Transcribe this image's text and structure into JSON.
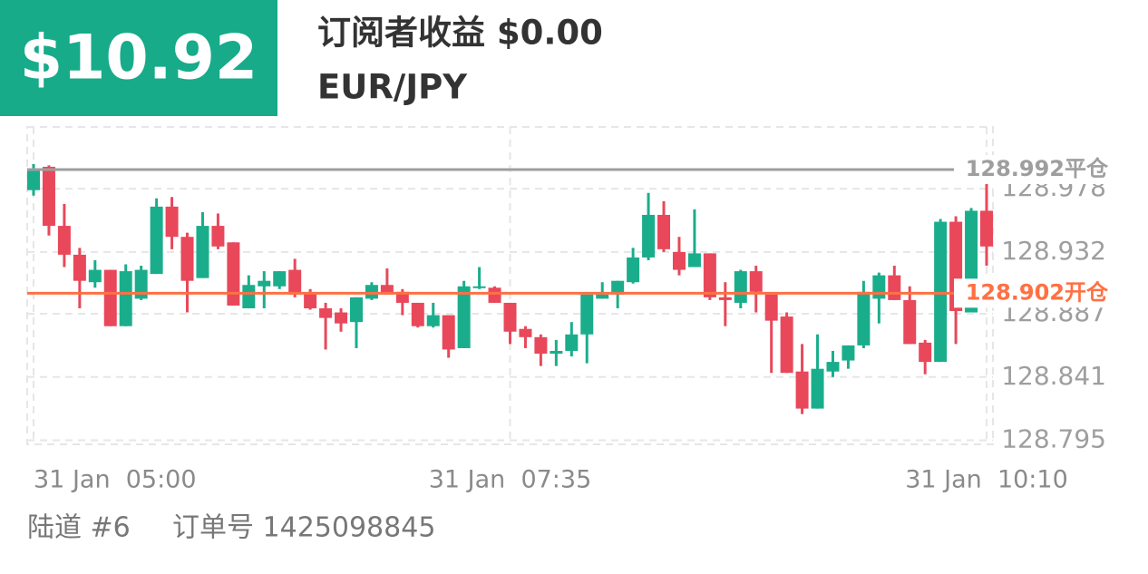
{
  "header": {
    "profit": "$10.92",
    "subscriber_profit": "订阅者收益 $0.00",
    "symbol": "EUR/JPY"
  },
  "footer": {
    "channel": "陆道 #6",
    "order": "订单号 1425098845"
  },
  "chart_data": {
    "type": "candlestick",
    "categories": [
      "31 Jan  05:00",
      null,
      null,
      null,
      null,
      null,
      null,
      null,
      null,
      null,
      null,
      null,
      null,
      null,
      null,
      null,
      null,
      null,
      null,
      null,
      null,
      null,
      null,
      null,
      null,
      null,
      null,
      null,
      null,
      null,
      null,
      "31 Jan  07:35",
      null,
      null,
      null,
      null,
      null,
      null,
      null,
      null,
      null,
      null,
      null,
      null,
      null,
      null,
      null,
      null,
      null,
      null,
      null,
      null,
      null,
      null,
      null,
      null,
      null,
      null,
      null,
      null,
      null,
      null,
      "31 Jan  10:10"
    ],
    "open": [
      128.977,
      128.994,
      128.951,
      128.93,
      128.91,
      128.919,
      128.878,
      128.898,
      128.916,
      128.965,
      128.943,
      128.913,
      128.951,
      128.939,
      128.891,
      128.907,
      128.907,
      128.919,
      128.902,
      128.891,
      128.888,
      128.881,
      128.898,
      128.908,
      128.903,
      128.895,
      128.878,
      128.886,
      128.862,
      128.906,
      128.906,
      128.895,
      128.876,
      128.87,
      128.858,
      128.86,
      128.872,
      128.898,
      128.901,
      128.91,
      128.928,
      128.959,
      128.932,
      128.921,
      128.931,
      128.899,
      128.895,
      128.918,
      128.901,
      128.885,
      128.845,
      128.818,
      128.845,
      128.853,
      128.864,
      128.898,
      128.915,
      128.897,
      128.866,
      128.852,
      128.954,
      128.888,
      128.962
    ],
    "high": [
      128.996,
      128.995,
      128.967,
      128.935,
      128.926,
      128.919,
      128.923,
      128.922,
      128.971,
      128.972,
      128.946,
      128.961,
      128.96,
      128.939,
      128.915,
      128.918,
      128.918,
      128.927,
      128.905,
      128.895,
      128.891,
      128.899,
      128.91,
      128.92,
      128.905,
      128.895,
      128.895,
      128.886,
      128.911,
      128.921,
      128.907,
      128.895,
      128.878,
      128.872,
      128.868,
      128.881,
      128.901,
      128.91,
      128.911,
      128.935,
      128.975,
      128.969,
      128.943,
      128.963,
      128.931,
      128.91,
      128.919,
      128.922,
      128.901,
      128.888,
      128.865,
      128.872,
      128.86,
      128.864,
      128.911,
      128.917,
      128.922,
      128.907,
      128.868,
      128.956,
      128.958,
      128.964,
      128.984
    ],
    "low": [
      128.973,
      128.944,
      128.921,
      128.891,
      128.906,
      128.878,
      128.878,
      128.897,
      128.916,
      128.934,
      128.888,
      128.913,
      128.934,
      128.893,
      128.891,
      128.891,
      128.905,
      128.899,
      128.89,
      128.861,
      128.874,
      128.862,
      128.897,
      128.901,
      128.886,
      128.877,
      128.877,
      128.855,
      128.862,
      128.905,
      128.895,
      128.865,
      128.862,
      128.849,
      128.849,
      128.856,
      128.851,
      128.898,
      128.891,
      128.909,
      128.926,
      128.932,
      128.915,
      128.921,
      128.897,
      128.878,
      128.891,
      128.888,
      128.844,
      128.844,
      128.814,
      128.818,
      128.841,
      128.847,
      128.862,
      128.88,
      128.897,
      128.865,
      128.843,
      128.852,
      128.865,
      128.888,
      128.922
    ],
    "close": [
      128.991,
      128.951,
      128.93,
      128.911,
      128.919,
      128.878,
      128.918,
      128.919,
      128.965,
      128.943,
      128.911,
      128.951,
      128.936,
      128.893,
      128.908,
      128.911,
      128.918,
      128.901,
      128.891,
      128.884,
      128.88,
      128.899,
      128.908,
      128.901,
      128.895,
      128.878,
      128.886,
      128.861,
      128.907,
      128.907,
      128.895,
      128.874,
      128.87,
      128.858,
      128.86,
      128.872,
      128.901,
      128.901,
      128.911,
      128.928,
      128.959,
      128.934,
      128.919,
      128.931,
      128.899,
      128.897,
      128.918,
      128.903,
      128.882,
      128.844,
      128.818,
      128.847,
      128.852,
      128.864,
      128.903,
      128.915,
      128.897,
      128.865,
      128.852,
      128.954,
      128.889,
      128.962,
      128.936
    ],
    "up_color": "#1aad8c",
    "down_color": "#e8485a",
    "ylim": [
      128.792,
      129.023
    ],
    "yticks": [
      128.795,
      128.841,
      128.887,
      128.932,
      128.978
    ],
    "grid": true,
    "price_lines": [
      {
        "value": 128.992,
        "label": "128.992平仓",
        "color": "#9e9e9e"
      },
      {
        "value": 128.902,
        "label": "128.902开仓",
        "color": "#ff7043"
      }
    ]
  }
}
